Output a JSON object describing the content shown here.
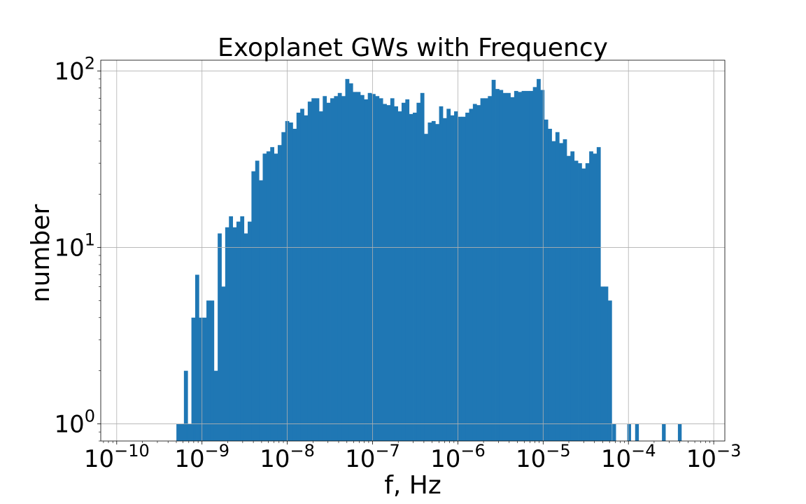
{
  "chart_data": {
    "type": "bar",
    "title": "Exoplanet GWs with Frequency",
    "xlabel": "f, Hz",
    "ylabel": "number",
    "x_scale": "log",
    "y_scale": "log",
    "xlim": [
      6.5e-11,
      0.00135
    ],
    "ylim": [
      0.8,
      115
    ],
    "grid": true,
    "bar_color": "#1f77b4",
    "x_tick_labels": [
      {
        "base": "10",
        "exp": "−10",
        "value": 1e-10
      },
      {
        "base": "10",
        "exp": "−9",
        "value": 1e-09
      },
      {
        "base": "10",
        "exp": "−8",
        "value": 1e-08
      },
      {
        "base": "10",
        "exp": "−7",
        "value": 1e-07
      },
      {
        "base": "10",
        "exp": "−6",
        "value": 1e-06
      },
      {
        "base": "10",
        "exp": "−5",
        "value": 1e-05
      },
      {
        "base": "10",
        "exp": "−4",
        "value": 0.0001
      },
      {
        "base": "10",
        "exp": "−3",
        "value": 0.001
      }
    ],
    "y_tick_labels": [
      {
        "base": "10",
        "exp": "0",
        "value": 1
      },
      {
        "base": "10",
        "exp": "1",
        "value": 10
      },
      {
        "base": "10",
        "exp": "2",
        "value": 100
      }
    ],
    "bin_log10_start": -9.3,
    "bin_log10_width": 0.044,
    "bin_counts": [
      1,
      1,
      2,
      1,
      4,
      7,
      4,
      4,
      5,
      5,
      2,
      12,
      6,
      13,
      15,
      13,
      14,
      15,
      12,
      14,
      27,
      31,
      24,
      34,
      35,
      37,
      34,
      38,
      45,
      52,
      51,
      47,
      58,
      61,
      56,
      67,
      70,
      70,
      59,
      72,
      66,
      70,
      72,
      75,
      72,
      90,
      85,
      76,
      76,
      73,
      69,
      75,
      74,
      72,
      70,
      65,
      64,
      70,
      63,
      59,
      66,
      69,
      57,
      58,
      66,
      75,
      44,
      51,
      52,
      50,
      63,
      54,
      61,
      56,
      59,
      55,
      55,
      58,
      61,
      65,
      64,
      70,
      70,
      72,
      89,
      79,
      78,
      75,
      75,
      71,
      77,
      76,
      77,
      77,
      77,
      81,
      90,
      78,
      53,
      47,
      40,
      45,
      39,
      41,
      33,
      35,
      31,
      30,
      28,
      30,
      35,
      34,
      37,
      6,
      6,
      5
    ],
    "sparse_bins": [
      {
        "f": 6.3e-10,
        "count": 1
      },
      {
        "f": 7.6e-10,
        "count": 1
      },
      {
        "f": 8.9e-10,
        "count": 1
      },
      {
        "f": 6.8e-05,
        "count": 1
      },
      {
        "f": 0.000102,
        "count": 1
      },
      {
        "f": 0.000126,
        "count": 1
      },
      {
        "f": 0.00026,
        "count": 1
      },
      {
        "f": 0.0004,
        "count": 1
      }
    ]
  }
}
